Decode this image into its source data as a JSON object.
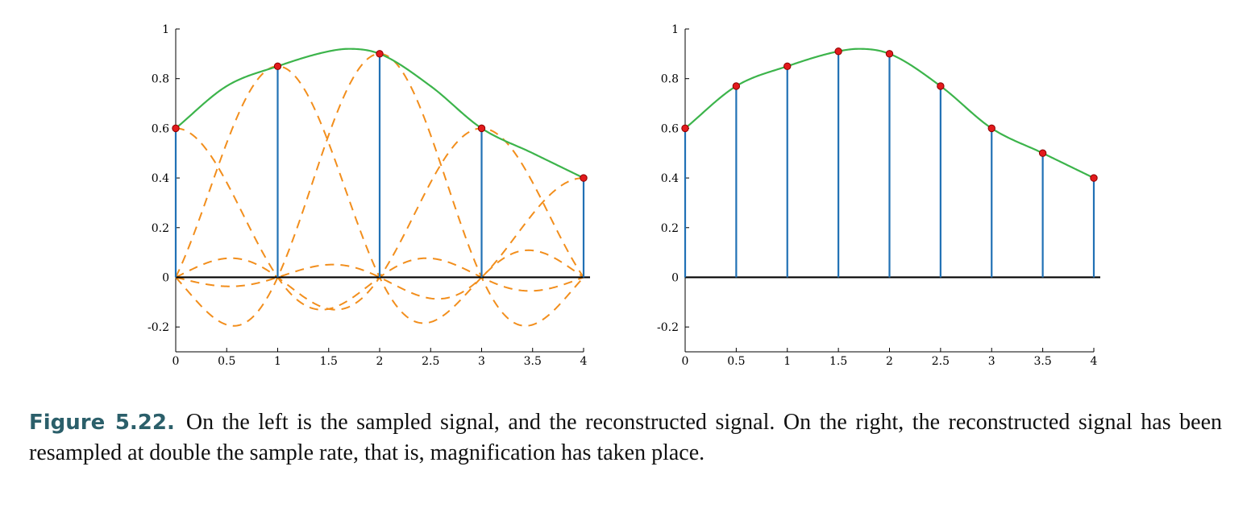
{
  "colors": {
    "stem": "#2171b5",
    "marker_fill": "#e31a1c",
    "marker_edge": "#8b0000",
    "reconstructed": "#3cb44b",
    "sinc": "#f28e1c",
    "axis": "#000000",
    "caption_label": "#2b5f6a"
  },
  "chart_data": [
    {
      "type": "line",
      "grid": false,
      "xlim": [
        0,
        4
      ],
      "ylim": [
        -0.3,
        1
      ],
      "xticks": [
        "0",
        "0.5",
        "1",
        "1.5",
        "2",
        "2.5",
        "3",
        "3.5",
        "4"
      ],
      "yticks": [
        "-0.2",
        "0",
        "0.2",
        "0.4",
        "0.6",
        "0.8",
        "1"
      ],
      "samples": {
        "x": [
          0,
          1,
          2,
          3,
          4
        ],
        "y": [
          0.6,
          0.85,
          0.9,
          0.6,
          0.4
        ]
      },
      "reconstructed": {
        "x": [
          0,
          0.5,
          1,
          1.5,
          1.7,
          2,
          2.5,
          3,
          3.5,
          4
        ],
        "y": [
          0.6,
          0.77,
          0.85,
          0.91,
          0.92,
          0.9,
          0.77,
          0.6,
          0.5,
          0.4
        ]
      },
      "sinc_components": true
    },
    {
      "type": "line",
      "grid": false,
      "xlim": [
        0,
        4
      ],
      "ylim": [
        -0.3,
        1
      ],
      "xticks": [
        "0",
        "0.5",
        "1",
        "1.5",
        "2",
        "2.5",
        "3",
        "3.5",
        "4"
      ],
      "yticks": [
        "-0.2",
        "0",
        "0.2",
        "0.4",
        "0.6",
        "0.8",
        "1"
      ],
      "samples": {
        "x": [
          0,
          0.5,
          1,
          1.5,
          2,
          2.5,
          3,
          3.5,
          4
        ],
        "y": [
          0.6,
          0.77,
          0.85,
          0.91,
          0.9,
          0.77,
          0.6,
          0.5,
          0.4
        ]
      },
      "reconstructed": {
        "x": [
          0,
          0.5,
          1,
          1.5,
          1.7,
          2,
          2.5,
          3,
          3.5,
          4
        ],
        "y": [
          0.6,
          0.77,
          0.85,
          0.91,
          0.92,
          0.9,
          0.77,
          0.6,
          0.5,
          0.4
        ]
      },
      "sinc_components": false
    }
  ],
  "caption": {
    "label": "Figure 5.22.",
    "text": "On the left is the sampled signal, and the reconstructed signal. On the right, the reconstructed signal has been resampled at double the sample rate, that is, magnification has taken place."
  }
}
